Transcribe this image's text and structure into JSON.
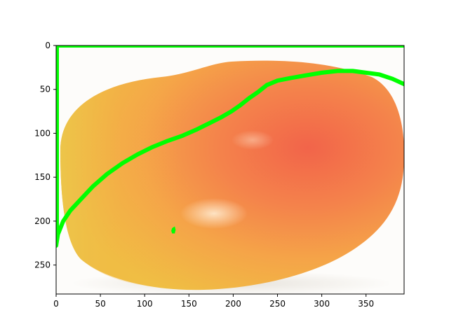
{
  "figure": {
    "image_subject": "mango",
    "x_ticks": [
      "0",
      "50",
      "100",
      "150",
      "200",
      "250",
      "300",
      "350"
    ],
    "y_ticks": [
      "0",
      "50",
      "100",
      "150",
      "200",
      "250"
    ],
    "xlim": [
      0,
      393
    ],
    "ylim": [
      283,
      0
    ],
    "overlay_color": "#00ff00",
    "background_color": "#fdfcfa"
  },
  "overlay": {
    "contour": [
      [
        0,
        228
      ],
      [
        2,
        215
      ],
      [
        8,
        200
      ],
      [
        16,
        188
      ],
      [
        28,
        175
      ],
      [
        42,
        160
      ],
      [
        58,
        146
      ],
      [
        75,
        134
      ],
      [
        92,
        124
      ],
      [
        108,
        116
      ],
      [
        125,
        109
      ],
      [
        142,
        103
      ],
      [
        158,
        96
      ],
      [
        172,
        89
      ],
      [
        186,
        82
      ],
      [
        198,
        75
      ],
      [
        208,
        68
      ],
      [
        218,
        60
      ],
      [
        228,
        53
      ],
      [
        238,
        45
      ],
      [
        250,
        40
      ],
      [
        265,
        37
      ],
      [
        282,
        34
      ],
      [
        300,
        31
      ],
      [
        318,
        29
      ],
      [
        335,
        29
      ],
      [
        350,
        31
      ],
      [
        365,
        33
      ],
      [
        380,
        38
      ],
      [
        393,
        44
      ]
    ],
    "blob": [
      [
        131,
        208
      ],
      [
        134,
        206
      ],
      [
        135,
        210
      ],
      [
        134,
        214
      ],
      [
        131,
        214
      ],
      [
        130,
        211
      ]
    ]
  }
}
